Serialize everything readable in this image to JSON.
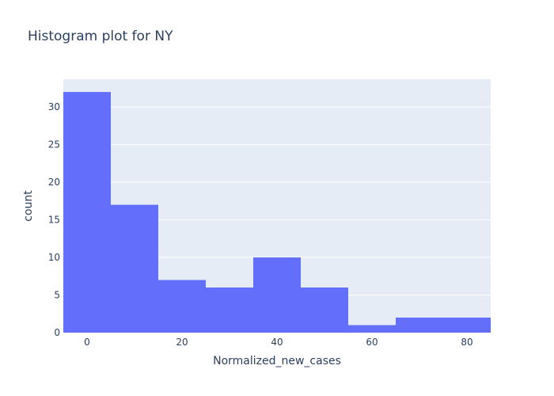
{
  "chart_data": {
    "type": "bar",
    "subtype": "histogram",
    "title": "Histogram plot for NY",
    "xlabel": "Normalized_new_cases",
    "ylabel": "count",
    "xlim": [
      -5,
      85
    ],
    "ylim": [
      0,
      33.7
    ],
    "x_ticks": [
      0,
      20,
      40,
      60,
      80
    ],
    "y_ticks": [
      0,
      5,
      10,
      15,
      20,
      25,
      30
    ],
    "bin_width": 10,
    "bins": [
      {
        "start": -5,
        "end": 5,
        "count": 32
      },
      {
        "start": 5,
        "end": 15,
        "count": 17
      },
      {
        "start": 15,
        "end": 25,
        "count": 7
      },
      {
        "start": 25,
        "end": 35,
        "count": 6
      },
      {
        "start": 35,
        "end": 45,
        "count": 10
      },
      {
        "start": 45,
        "end": 55,
        "count": 6
      },
      {
        "start": 55,
        "end": 65,
        "count": 1
      },
      {
        "start": 65,
        "end": 75,
        "count": 2
      },
      {
        "start": 75,
        "end": 85,
        "count": 2
      }
    ],
    "grid": true,
    "colors": {
      "bar": "#636efa",
      "plot_background": "#e5ecf6",
      "grid": "#ffffff",
      "text": "#2a3f5f"
    }
  }
}
